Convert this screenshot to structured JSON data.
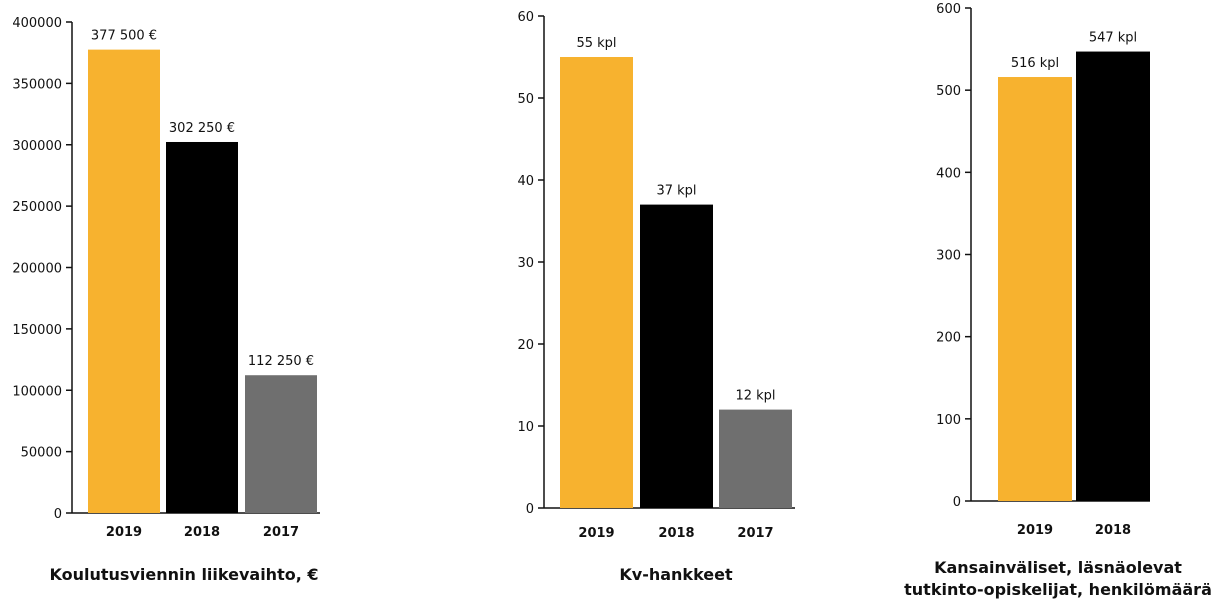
{
  "colors": {
    "c2019": "#f7b22f",
    "c2018": "#000000",
    "c2017": "#6f6f6f"
  },
  "chart_data": [
    {
      "type": "bar",
      "title": "Koulutusviennin liikevaihto, €",
      "categories": [
        "2019",
        "2018",
        "2017"
      ],
      "values": [
        377500,
        302250,
        112250
      ],
      "data_labels": [
        "377 500 €",
        "302 250 €",
        "112 250 €"
      ],
      "bar_colors": [
        "#f7b22f",
        "#000000",
        "#6f6f6f"
      ],
      "ylim": [
        0,
        400000
      ],
      "yticks": [
        0,
        50000,
        100000,
        150000,
        200000,
        250000,
        300000,
        350000,
        400000
      ],
      "xlabel": "",
      "ylabel": "",
      "grid": false
    },
    {
      "type": "bar",
      "title": "Kv-hankkeet",
      "categories": [
        "2019",
        "2018",
        "2017"
      ],
      "values": [
        55,
        37,
        12
      ],
      "data_labels": [
        "55 kpl",
        "37 kpl",
        "12 kpl"
      ],
      "bar_colors": [
        "#f7b22f",
        "#000000",
        "#6f6f6f"
      ],
      "ylim": [
        0,
        60
      ],
      "yticks": [
        0,
        10,
        20,
        30,
        40,
        50,
        60
      ],
      "xlabel": "",
      "ylabel": "",
      "grid": false
    },
    {
      "type": "bar",
      "title": [
        "Kansainväliset, läsnäolevat",
        "tutkinto-opiskelijat, henkilömäärä"
      ],
      "categories": [
        "2019",
        "2018"
      ],
      "values": [
        516,
        547
      ],
      "data_labels": [
        "516 kpl",
        "547 kpl"
      ],
      "bar_colors": [
        "#f7b22f",
        "#000000"
      ],
      "ylim": [
        0,
        600
      ],
      "yticks": [
        0,
        100,
        200,
        300,
        400,
        500,
        600
      ],
      "xlabel": "",
      "ylabel": "",
      "grid": false
    }
  ]
}
